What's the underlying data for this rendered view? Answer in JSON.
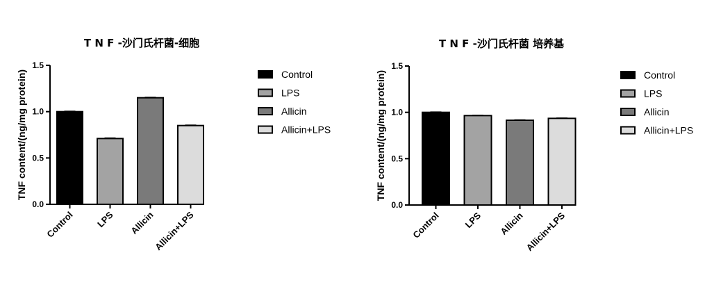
{
  "chart_data": [
    {
      "type": "bar",
      "title": "T N F -沙门氏杆菌-细胞",
      "ylabel": "TNF content/(ng/mg protein)",
      "xlabel": "",
      "ylim": [
        0,
        1.5
      ],
      "yticks": [
        "0.0",
        "0.5",
        "1.0",
        "1.5"
      ],
      "categories": [
        "Control",
        "LPS",
        "Allicin",
        "Allicin+LPS"
      ],
      "values": [
        1.0,
        0.71,
        1.15,
        0.85
      ],
      "errors": [
        0.005,
        0.006,
        0.005,
        0.005
      ],
      "colors": [
        "#000000",
        "#a3a3a3",
        "#7a7a7a",
        "#dcdcdc"
      ],
      "grid": false,
      "legend_placement": "right"
    },
    {
      "type": "bar",
      "title": "T N F -沙门氏杆菌 培养基",
      "ylabel": "TNF content/(ng/mg protein)",
      "xlabel": "",
      "ylim": [
        0,
        1.5
      ],
      "yticks": [
        "0.0",
        "0.5",
        "1.0",
        "1.5"
      ],
      "categories": [
        "Control",
        "LPS",
        "Allicin",
        "Allicin+LPS"
      ],
      "values": [
        1.0,
        0.965,
        0.915,
        0.935
      ],
      "errors": [
        0.004,
        0.004,
        0.004,
        0.004
      ],
      "colors": [
        "#000000",
        "#a3a3a3",
        "#7a7a7a",
        "#dcdcdc"
      ],
      "grid": false,
      "legend_placement": "right"
    }
  ]
}
